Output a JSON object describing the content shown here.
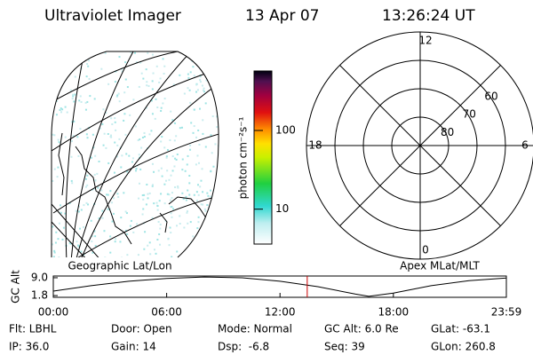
{
  "header": {
    "title": "Ultraviolet Imager",
    "date": "13 Apr 07",
    "time": "13:26:24 UT"
  },
  "map": {
    "title": "Geographic Lat/Lon"
  },
  "colorbar": {
    "label": "photon cm⁻²s⁻¹",
    "scale": "log",
    "lim": [
      3.6,
      570
    ],
    "ticks": [
      10,
      100
    ]
  },
  "polar": {
    "title": "Apex MLat/MLT",
    "rlim": [
      90,
      50
    ],
    "rticks": [
      80,
      70,
      60
    ],
    "angle_ticks": [
      12,
      6,
      0,
      18
    ]
  },
  "chart_data": {
    "type": "line",
    "ylabel": "GC Alt",
    "x": [
      0,
      2,
      4,
      6,
      8,
      10,
      12,
      14,
      16,
      16.7,
      18,
      20,
      22,
      23.98
    ],
    "series": [
      {
        "color": "#000000",
        "values": [
          3.6,
          5.8,
          7.6,
          8.7,
          9.3,
          9.0,
          7.6,
          5.4,
          2.4,
          1.5,
          2.8,
          5.8,
          7.8,
          8.9
        ]
      }
    ],
    "xlim": [
      0,
      23.98
    ],
    "xticks": [
      {
        "value": 0,
        "label": "00:00"
      },
      {
        "value": 6,
        "label": "06:00"
      },
      {
        "value": 12,
        "label": "12:00"
      },
      {
        "value": 18,
        "label": "18:00"
      },
      {
        "value": 23.98,
        "label": "23:59"
      }
    ],
    "ylim": [
      1.1,
      9.7
    ],
    "yticks": [
      1.8,
      {
        "value": 9,
        "label": "9.0"
      }
    ],
    "current_time": 13.44,
    "current_time_color": "#cc0000"
  },
  "info": {
    "rows": [
      [
        "Flt: LBHL",
        "Door: Open",
        "Mode: Normal",
        "GC Alt: 6.0 Re",
        "GLat: -63.1"
      ],
      [
        "IP: 36.0",
        "Gain: 14",
        "Dsp:  -6.8",
        "Seq: 39",
        "GLon: 260.8"
      ]
    ]
  }
}
